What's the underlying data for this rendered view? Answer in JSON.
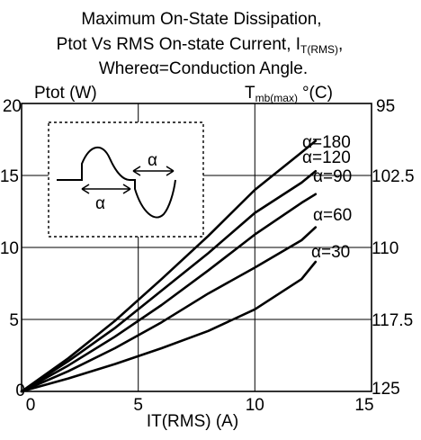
{
  "chart_data": {
    "type": "line",
    "title_lines": [
      "Maximum On-State  Dissipation,",
      "Ptot Vs RMS On-state Current, I",
      "Whereα=Conduction Angle."
    ],
    "title_subscript": "T(RMS)",
    "title_suffix": ",",
    "xlabel": "IT(RMS) (A)",
    "ylabel": "Ptot (W)",
    "y2label_main": "T",
    "y2label_sub": "mb(max)",
    "y2label_unit": "°(C)",
    "xlim": [
      0,
      15
    ],
    "ylim": [
      0,
      20
    ],
    "x_ticks": [
      0,
      5,
      10,
      15
    ],
    "y_ticks": [
      0,
      5,
      10,
      15,
      20
    ],
    "y2_ticks": [
      {
        "at": 20,
        "label": "95"
      },
      {
        "at": 15,
        "label": "102.5"
      },
      {
        "at": 10,
        "label": "110"
      },
      {
        "at": 5,
        "label": "117.5"
      },
      {
        "at": 0,
        "label": "125"
      }
    ],
    "grid": true,
    "series": [
      {
        "name": "α=180",
        "x": [
          0,
          2,
          4,
          6,
          8,
          10,
          12,
          12.6
        ],
        "y": [
          0,
          2.3,
          4.9,
          7.8,
          10.8,
          14.0,
          16.6,
          17.4
        ]
      },
      {
        "name": "α=120",
        "x": [
          0,
          2,
          4,
          6,
          8,
          10,
          12,
          12.6
        ],
        "y": [
          0,
          2.1,
          4.4,
          7.0,
          9.6,
          12.4,
          14.5,
          15.3
        ]
      },
      {
        "name": "α=90",
        "x": [
          0,
          2,
          4,
          6,
          8,
          10,
          12,
          12.6
        ],
        "y": [
          0,
          1.8,
          3.8,
          6.0,
          8.4,
          10.9,
          13.1,
          13.7
        ]
      },
      {
        "name": "α=60",
        "x": [
          0,
          2,
          4,
          6,
          8,
          10,
          12,
          12.6
        ],
        "y": [
          0,
          1.4,
          3.0,
          4.8,
          6.8,
          8.6,
          10.5,
          11.4
        ]
      },
      {
        "name": "α=30",
        "x": [
          0,
          2,
          4,
          6,
          8,
          10,
          12,
          12.6
        ],
        "y": [
          0,
          0.9,
          1.9,
          3.0,
          4.2,
          5.7,
          7.8,
          9.0
        ]
      }
    ],
    "inset_labels": [
      "α",
      "α"
    ]
  }
}
